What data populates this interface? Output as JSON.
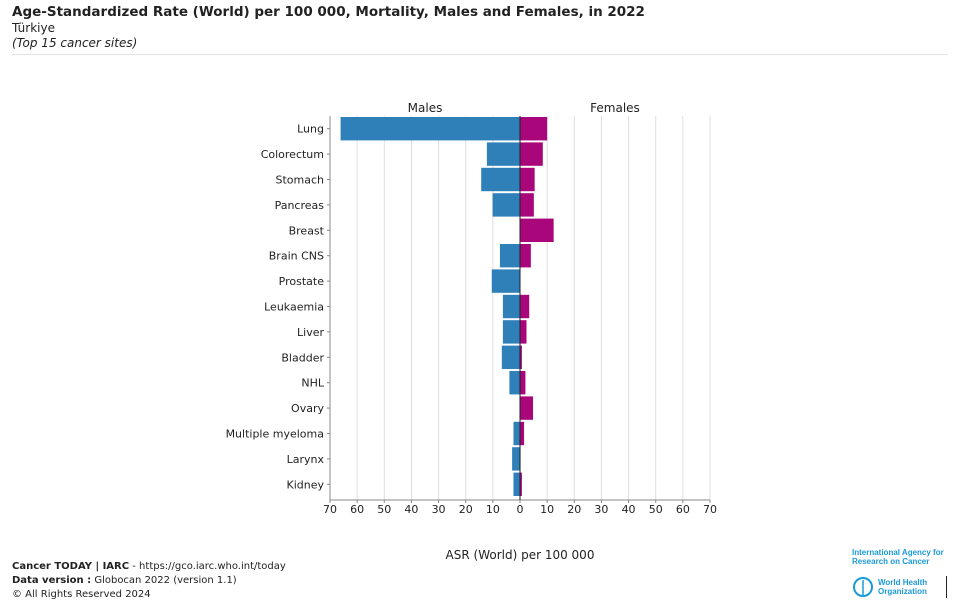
{
  "header": {
    "title": "Age-Standardized Rate (World) per 100 000, Mortality, Males and Females, in 2022",
    "country": "Türkiye",
    "note": "(Top 15 cancer sites)"
  },
  "chart_data": {
    "type": "bar",
    "orientation": "horizontal-pyramid",
    "categories": [
      "Lung",
      "Colorectum",
      "Stomach",
      "Pancreas",
      "Breast",
      "Brain CNS",
      "Prostate",
      "Leukaemia",
      "Liver",
      "Bladder",
      "NHL",
      "Ovary",
      "Multiple myeloma",
      "Larynx",
      "Kidney"
    ],
    "series": [
      {
        "name": "Males",
        "color": "#2f7fb8",
        "values": [
          66.1,
          12.2,
          14.3,
          10.1,
          0,
          7.4,
          10.4,
          6.3,
          6.3,
          6.7,
          3.9,
          0,
          2.4,
          2.9,
          2.4
        ]
      },
      {
        "name": "Females",
        "color": "#a8067a",
        "values": [
          10.0,
          8.4,
          5.4,
          5.1,
          12.4,
          4.0,
          0,
          3.4,
          2.4,
          0.7,
          2.0,
          4.8,
          1.5,
          0.2,
          0.7
        ]
      }
    ],
    "xlabel": "ASR (World) per 100 000",
    "xlim": [
      0,
      70
    ],
    "ticks": [
      70,
      60,
      50,
      40,
      30,
      20,
      10,
      0,
      10,
      20,
      30,
      40,
      50,
      60,
      70
    ],
    "grid": true
  },
  "footer": {
    "line1_bold": "Cancer TODAY | IARC",
    "line1_rest": " - https://gco.iarc.who.int/today",
    "line2_bold": "Data version :",
    "line2_rest": " Globocan 2022 (version 1.1)",
    "line3": "© All Rights Reserved 2024"
  },
  "logos": {
    "iarc": "International Agency for Research on Cancer",
    "who": "World Health Organization"
  }
}
